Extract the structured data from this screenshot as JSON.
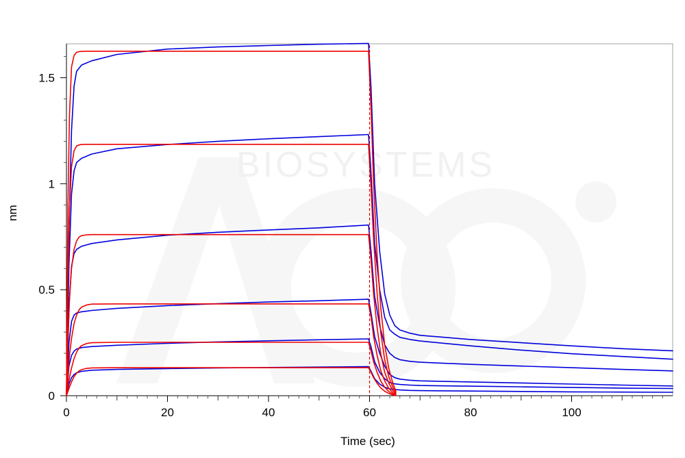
{
  "chart_data": {
    "type": "line",
    "title": "",
    "xlabel": "Time (sec)",
    "ylabel": "nm",
    "xlim": [
      0,
      120
    ],
    "ylim": [
      0,
      1.66
    ],
    "x_ticks": [
      0,
      20,
      40,
      60,
      80,
      100
    ],
    "y_ticks": [
      0,
      0.5,
      1,
      1.5
    ],
    "x_tick_labels": [
      "0",
      "20",
      "40",
      "60",
      "80",
      "100"
    ],
    "y_tick_labels": [
      "0",
      "0.5",
      "1",
      "1.5"
    ],
    "grid": false,
    "legend": "none",
    "association_end": 60,
    "watermark": "BIOSYSTEMS",
    "colors": {
      "measured": "#0000dd",
      "fit": "#ee0000",
      "marker": "#cc0000",
      "watermark": "#f0f0f0"
    },
    "series": [
      {
        "kind": "measured",
        "color": "#0000dd",
        "x": [
          0,
          0.5,
          1,
          1.5,
          2,
          3,
          5,
          10,
          20,
          30,
          40,
          50,
          59.8,
          60.3,
          61,
          62,
          63,
          64,
          65,
          66,
          68,
          70,
          80,
          90,
          100,
          110,
          120
        ],
        "y": [
          0,
          0.78,
          1.25,
          1.46,
          1.53,
          1.56,
          1.58,
          1.61,
          1.635,
          1.645,
          1.652,
          1.658,
          1.662,
          1.45,
          1.0,
          0.68,
          0.48,
          0.38,
          0.33,
          0.31,
          0.295,
          0.285,
          0.265,
          0.25,
          0.235,
          0.222,
          0.212
        ]
      },
      {
        "kind": "measured",
        "color": "#0000dd",
        "x": [
          0,
          0.5,
          1,
          1.5,
          2,
          3,
          5,
          10,
          20,
          30,
          40,
          50,
          59.8,
          60.3,
          61,
          62,
          63,
          64,
          65,
          66,
          68,
          70,
          80,
          90,
          100,
          110,
          120
        ],
        "y": [
          0,
          0.62,
          0.95,
          1.06,
          1.1,
          1.12,
          1.14,
          1.165,
          1.185,
          1.2,
          1.212,
          1.222,
          1.232,
          1.05,
          0.72,
          0.5,
          0.37,
          0.31,
          0.29,
          0.275,
          0.265,
          0.258,
          0.235,
          0.215,
          0.198,
          0.185,
          0.172
        ]
      },
      {
        "kind": "measured",
        "color": "#0000dd",
        "x": [
          0,
          0.5,
          1,
          1.5,
          2,
          3,
          5,
          10,
          20,
          30,
          40,
          50,
          59.8,
          60.3,
          61,
          62,
          63,
          64,
          65,
          66,
          68,
          70,
          80,
          90,
          100,
          110,
          120
        ],
        "y": [
          0,
          0.42,
          0.61,
          0.67,
          0.69,
          0.705,
          0.718,
          0.735,
          0.757,
          0.771,
          0.782,
          0.792,
          0.805,
          0.68,
          0.47,
          0.33,
          0.24,
          0.2,
          0.18,
          0.17,
          0.162,
          0.158,
          0.148,
          0.14,
          0.132,
          0.124,
          0.117
        ]
      },
      {
        "kind": "measured",
        "color": "#0000dd",
        "x": [
          0,
          0.5,
          1,
          1.5,
          2,
          3,
          5,
          10,
          20,
          30,
          40,
          50,
          59.8,
          60.3,
          61,
          62,
          63,
          64,
          65,
          66,
          68,
          70,
          80,
          90,
          100,
          110,
          120
        ],
        "y": [
          0,
          0.25,
          0.35,
          0.38,
          0.39,
          0.396,
          0.402,
          0.412,
          0.425,
          0.434,
          0.442,
          0.448,
          0.455,
          0.39,
          0.28,
          0.2,
          0.14,
          0.1,
          0.085,
          0.078,
          0.073,
          0.07,
          0.065,
          0.06,
          0.055,
          0.05,
          0.046
        ]
      },
      {
        "kind": "measured",
        "color": "#0000dd",
        "x": [
          0,
          0.5,
          1,
          1.5,
          2,
          3,
          5,
          10,
          20,
          30,
          40,
          50,
          59.8,
          60.3,
          61,
          62,
          63,
          64,
          65,
          66,
          68,
          70,
          80,
          90,
          100,
          110,
          120
        ],
        "y": [
          0,
          0.14,
          0.19,
          0.21,
          0.22,
          0.227,
          0.232,
          0.238,
          0.247,
          0.254,
          0.259,
          0.264,
          0.268,
          0.23,
          0.16,
          0.11,
          0.08,
          0.062,
          0.056,
          0.053,
          0.05,
          0.048,
          0.045,
          0.042,
          0.039,
          0.036,
          0.034
        ]
      },
      {
        "kind": "measured",
        "color": "#0000dd",
        "x": [
          0,
          0.5,
          1,
          1.5,
          2,
          3,
          5,
          10,
          20,
          30,
          40,
          50,
          59.8,
          60.3,
          61,
          62,
          63,
          64,
          65,
          66,
          68,
          70,
          80,
          90,
          100,
          110,
          120
        ],
        "y": [
          0,
          0.055,
          0.085,
          0.1,
          0.108,
          0.115,
          0.12,
          0.124,
          0.128,
          0.131,
          0.133,
          0.135,
          0.137,
          0.115,
          0.08,
          0.055,
          0.04,
          0.032,
          0.029,
          0.027,
          0.025,
          0.024,
          0.022,
          0.02,
          0.018,
          0.017,
          0.016
        ]
      },
      {
        "kind": "fit",
        "color": "#ee0000",
        "x": [
          0,
          0.3,
          0.6,
          1,
          1.5,
          2,
          2.5,
          3,
          4,
          5,
          10,
          20,
          40,
          59.8,
          60.3,
          60.8,
          61.5,
          62.2,
          63,
          63.8,
          64.6,
          65.2
        ],
        "y": [
          0,
          0.9,
          1.32,
          1.55,
          1.605,
          1.62,
          1.623,
          1.624,
          1.625,
          1.625,
          1.625,
          1.625,
          1.625,
          1.625,
          1.35,
          1.0,
          0.66,
          0.42,
          0.24,
          0.13,
          0.06,
          0.02
        ]
      },
      {
        "kind": "fit",
        "color": "#ee0000",
        "x": [
          0,
          0.3,
          0.6,
          1,
          1.5,
          2,
          2.5,
          3,
          4,
          5,
          10,
          20,
          40,
          59.8,
          60.3,
          60.8,
          61.5,
          62.2,
          63,
          63.8,
          64.6,
          65.2
        ],
        "y": [
          0,
          0.55,
          0.88,
          1.08,
          1.155,
          1.178,
          1.183,
          1.185,
          1.186,
          1.186,
          1.186,
          1.186,
          1.186,
          1.186,
          0.98,
          0.74,
          0.48,
          0.3,
          0.17,
          0.09,
          0.04,
          0.015
        ]
      },
      {
        "kind": "fit",
        "color": "#ee0000",
        "x": [
          0,
          0.3,
          0.6,
          1,
          1.5,
          2,
          2.5,
          3,
          4,
          5,
          10,
          20,
          40,
          59.8,
          60.3,
          60.8,
          61.5,
          62.2,
          63,
          63.8,
          64.6,
          65.2
        ],
        "y": [
          0,
          0.25,
          0.45,
          0.6,
          0.69,
          0.73,
          0.748,
          0.755,
          0.759,
          0.76,
          0.76,
          0.76,
          0.76,
          0.76,
          0.64,
          0.48,
          0.32,
          0.2,
          0.11,
          0.06,
          0.025,
          0.01
        ]
      },
      {
        "kind": "fit",
        "color": "#ee0000",
        "x": [
          0,
          0.3,
          0.6,
          1,
          1.5,
          2,
          2.5,
          3,
          4,
          5,
          10,
          20,
          40,
          59.8,
          60.3,
          60.8,
          61.5,
          62.2,
          63,
          63.8,
          64.6,
          65.2
        ],
        "y": [
          0,
          0.1,
          0.19,
          0.27,
          0.34,
          0.38,
          0.405,
          0.418,
          0.428,
          0.432,
          0.433,
          0.433,
          0.433,
          0.433,
          0.37,
          0.28,
          0.19,
          0.12,
          0.07,
          0.035,
          0.015,
          0.005
        ]
      },
      {
        "kind": "fit",
        "color": "#ee0000",
        "x": [
          0,
          0.3,
          0.6,
          1,
          1.5,
          2,
          2.5,
          3,
          4,
          5,
          10,
          20,
          40,
          59.8,
          60.3,
          60.8,
          61.5,
          62.2,
          63,
          63.8,
          64.6,
          65.2
        ],
        "y": [
          0,
          0.045,
          0.085,
          0.13,
          0.175,
          0.205,
          0.225,
          0.236,
          0.246,
          0.25,
          0.252,
          0.252,
          0.252,
          0.252,
          0.21,
          0.16,
          0.11,
          0.07,
          0.04,
          0.02,
          0.008,
          0.002
        ]
      },
      {
        "kind": "fit",
        "color": "#ee0000",
        "x": [
          0,
          0.3,
          0.6,
          1,
          1.5,
          2,
          2.5,
          3,
          4,
          5,
          10,
          20,
          40,
          59.8,
          60.3,
          60.8,
          61.5,
          62.2,
          63,
          63.8,
          64.6,
          65.2
        ],
        "y": [
          0,
          0.02,
          0.04,
          0.065,
          0.09,
          0.106,
          0.117,
          0.123,
          0.129,
          0.131,
          0.132,
          0.132,
          0.132,
          0.132,
          0.11,
          0.085,
          0.058,
          0.037,
          0.021,
          0.011,
          0.004,
          0.001
        ]
      }
    ]
  }
}
